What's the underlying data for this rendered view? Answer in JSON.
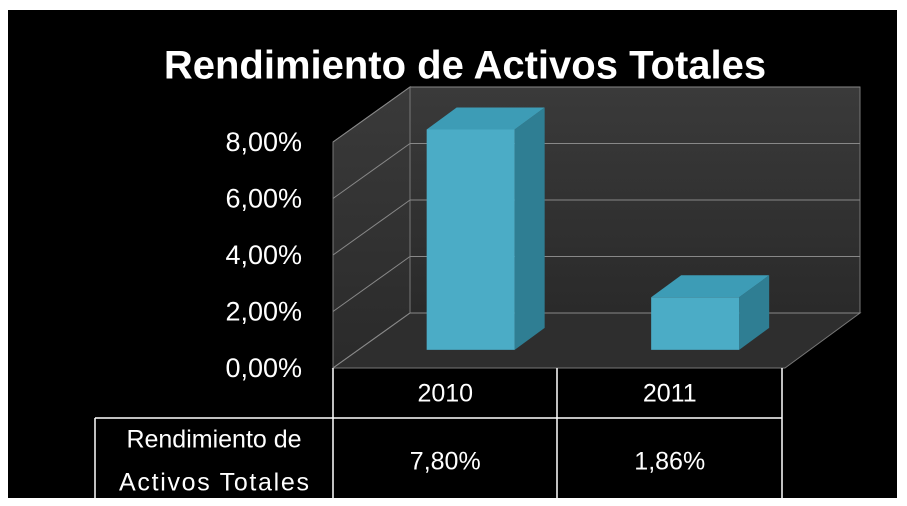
{
  "chart_data": {
    "type": "bar3d",
    "title": "Rendimiento de Activos Totales",
    "categories": [
      "2010",
      "2011"
    ],
    "series": [
      {
        "name": "Rendimiento de Activos Totales",
        "color": "#4bacc6",
        "values": [
          7.8,
          1.86
        ],
        "value_labels": [
          "7,80%",
          "1,86%"
        ]
      }
    ],
    "ylim": [
      0,
      8
    ],
    "yticks": [
      {
        "value": 0,
        "label": "0,00%"
      },
      {
        "value": 2,
        "label": "2,00%"
      },
      {
        "value": 4,
        "label": "4,00%"
      },
      {
        "value": 6,
        "label": "6,00%"
      },
      {
        "value": 8,
        "label": "8,00%"
      }
    ],
    "grid": true
  }
}
